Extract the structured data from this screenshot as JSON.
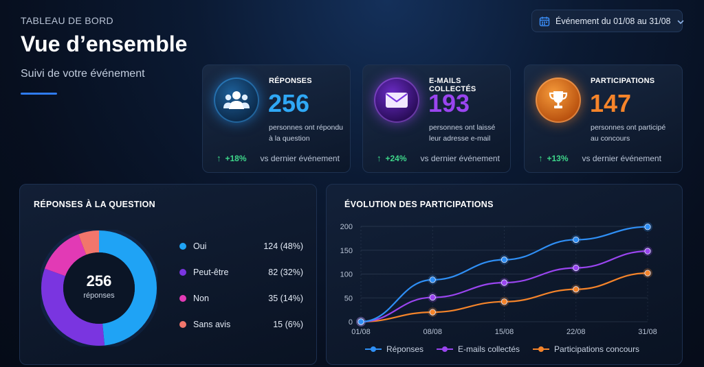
{
  "header": {
    "eyebrow": "TABLEAU DE BORD",
    "title": "Vue d’ensemble",
    "subtitle": "Suivi de votre événement",
    "date_filter": "Événement du 01/08 au 31/08"
  },
  "colors": {
    "accent": "#2f7bf0",
    "blue": "#1fa3f5",
    "purple": "#8a35e0",
    "orange": "#f5842a",
    "pink": "#e23ab5",
    "salmon": "#f2766c",
    "green": "#3ed68a"
  },
  "kpis": [
    {
      "label": "RÉPONSES",
      "value": "256",
      "desc_line1": "personnes ont répondu",
      "desc_line2": "à la question",
      "delta": "+18%",
      "compare": "vs dernier événement",
      "icon": "users-icon",
      "color": "#2fa8f5"
    },
    {
      "label": "E-MAILS COLLECTÉS",
      "value": "193",
      "desc_line1": "personnes ont laissé",
      "desc_line2": "leur adresse e-mail",
      "delta": "+24%",
      "compare": "vs dernier événement",
      "icon": "envelope-icon",
      "color": "#9a45f0"
    },
    {
      "label": "PARTICIPATIONS",
      "value": "147",
      "desc_line1": "personnes ont participé",
      "desc_line2": "au concours",
      "delta": "+13%",
      "compare": "vs dernier événement",
      "icon": "trophy-icon",
      "color": "#f5842a"
    }
  ],
  "answers": {
    "title": "RÉPONSES À LA QUESTION",
    "total": "256",
    "total_label": "réponses",
    "items": [
      {
        "name": "Oui",
        "value": "124 (48%)",
        "count": 124,
        "color": "#1fa3f5"
      },
      {
        "name": "Peut-être",
        "value": "82 (32%)",
        "count": 82,
        "color": "#7a35e0"
      },
      {
        "name": "Non",
        "value": "35 (14%)",
        "count": 35,
        "color": "#e23ab5"
      },
      {
        "name": "Sans avis",
        "value": "15 (6%)",
        "count": 15,
        "color": "#f2766c"
      }
    ]
  },
  "chart_data": {
    "type": "line",
    "title": "ÉVOLUTION DES PARTICIPATIONS",
    "categories": [
      "01/08",
      "08/08",
      "15/08",
      "22/08",
      "31/08"
    ],
    "ylim": [
      0,
      200
    ],
    "yticks": [
      "0",
      "50",
      "100",
      "150",
      "200"
    ],
    "grid": true,
    "legend_position": "bottom",
    "series": [
      {
        "name": "Réponses",
        "values": [
          0,
          88,
          130,
          172,
          199
        ],
        "color": "#2f8ff5"
      },
      {
        "name": "E-mails collectés",
        "values": [
          0,
          51,
          82,
          113,
          148
        ],
        "color": "#9a45f0"
      },
      {
        "name": "Participations concours",
        "values": [
          0,
          20,
          42,
          68,
          102
        ],
        "color": "#f5842a"
      }
    ]
  }
}
